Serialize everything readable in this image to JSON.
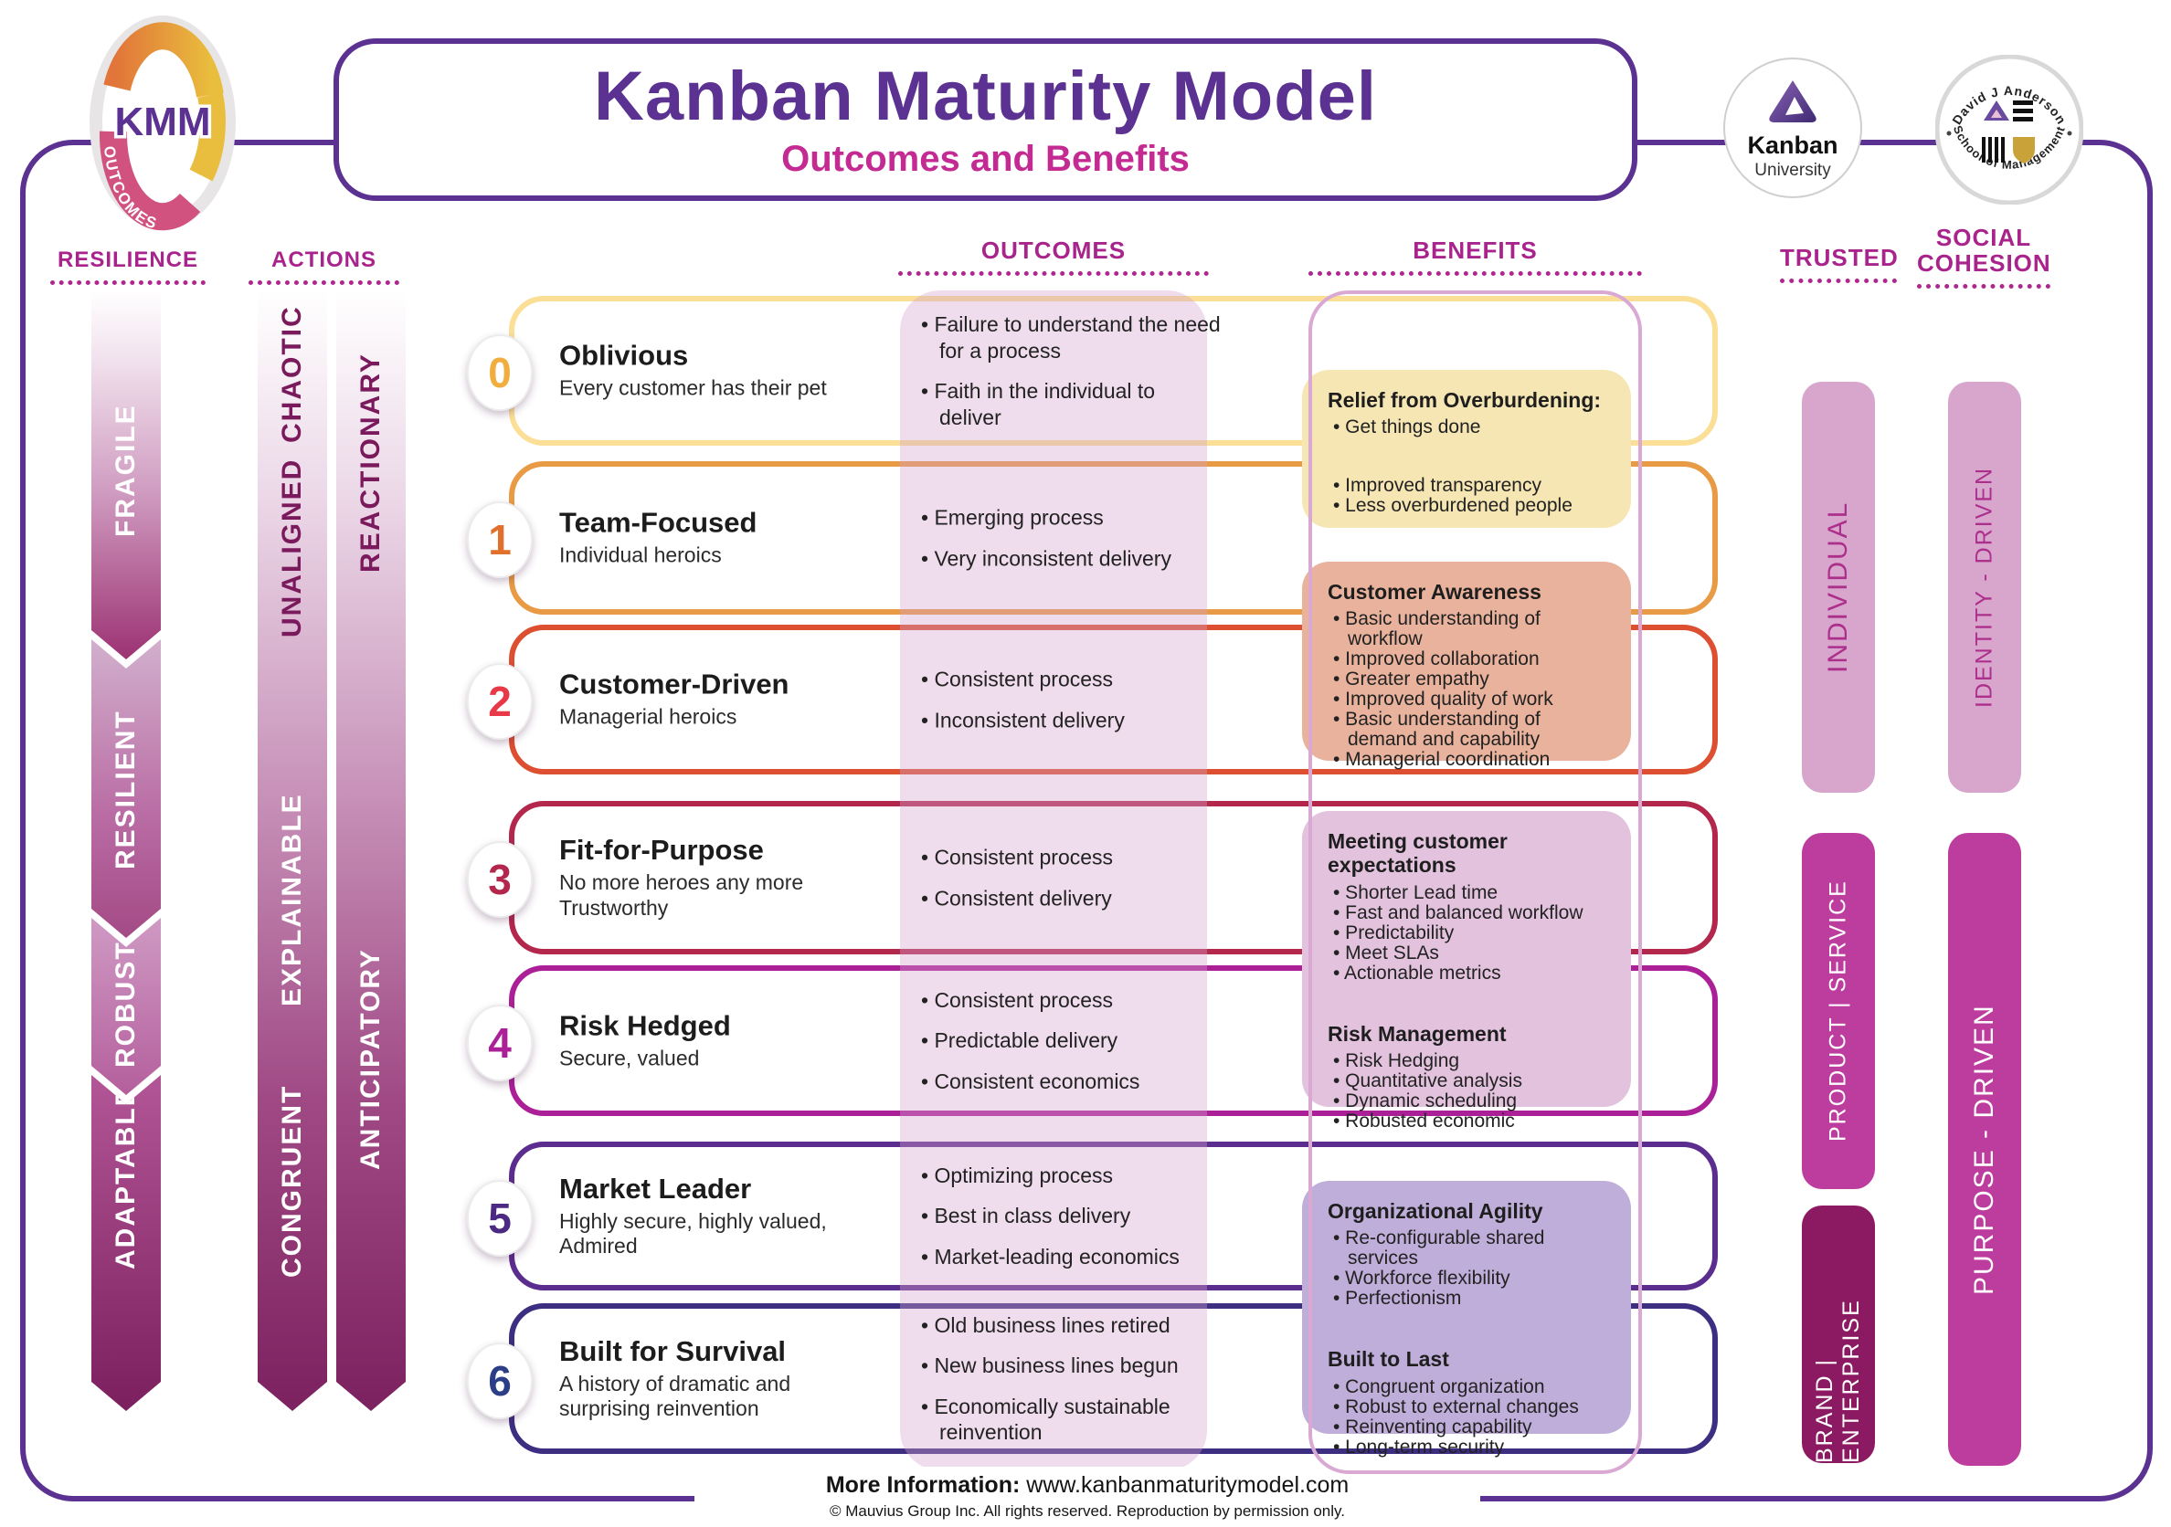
{
  "kmm_logo": {
    "text": "KMM",
    "banner": "OUTCOMES"
  },
  "header": {
    "title": "Kanban Maturity Model",
    "subtitle": "Outcomes and Benefits"
  },
  "partner_logos": {
    "kanban_university": {
      "line1": "Kanban",
      "line2": "University"
    },
    "anderson_school": {
      "arc_top": "David J Anderson",
      "arc_bottom": "School of Management"
    }
  },
  "column_headers": {
    "resilience": "RESILIENCE",
    "actions": "ACTIONS",
    "outcomes": "OUTCOMES",
    "benefits": "BENEFITS",
    "trusted": "TRUSTED",
    "social_line1": "SOCIAL",
    "social_line2": "COHESION"
  },
  "resilience_arrow": {
    "segments": [
      "FRAGILE",
      "RESILIENT",
      "ROBUST",
      "ADAPTABLE"
    ]
  },
  "actions_arrows": [
    {
      "labels": [
        "CHAOTIC",
        "UNALIGNED",
        "EXPLAINABLE",
        "CONGRUENT"
      ]
    },
    {
      "labels": [
        "REACTIONARY",
        "ANTICIPATORY"
      ]
    }
  ],
  "levels": [
    {
      "number": "0",
      "title": "Oblivious",
      "subtitle": "Every customer has their pet",
      "border_color": "#fbdf96",
      "number_color": "#efae3e",
      "outcomes": [
        "Failure to understand the need for a process",
        "Faith in the individual to deliver"
      ]
    },
    {
      "number": "1",
      "title": "Team-Focused",
      "subtitle": "Individual heroics",
      "border_color": "#e89a44",
      "number_color": "#e2702d",
      "outcomes": [
        "Emerging process",
        "Very inconsistent delivery"
      ]
    },
    {
      "number": "2",
      "title": "Customer-Driven",
      "subtitle": "Managerial heroics",
      "border_color": "#dc4f30",
      "number_color": "#e73948",
      "outcomes": [
        "Consistent process",
        "Inconsistent delivery"
      ]
    },
    {
      "number": "3",
      "title": "Fit-for-Purpose",
      "subtitle": "No more heroes any more\nTrustworthy",
      "border_color": "#b3274d",
      "number_color": "#b3274d",
      "outcomes": [
        "Consistent process",
        "Consistent delivery"
      ]
    },
    {
      "number": "4",
      "title": "Risk Hedged",
      "subtitle": "Secure, valued",
      "border_color": "#ab1f97",
      "number_color": "#ab1f97",
      "outcomes": [
        "Consistent process",
        "Predictable delivery",
        "Consistent economics"
      ]
    },
    {
      "number": "5",
      "title": "Market Leader",
      "subtitle": "Highly secure, highly valued,\nAdmired",
      "border_color": "#5b2d8e",
      "number_color": "#4c2a84",
      "outcomes": [
        "Optimizing process",
        "Best in class delivery",
        "Market-leading economics"
      ]
    },
    {
      "number": "6",
      "title": "Built for Survival",
      "subtitle": "A history of dramatic and\nsurprising reinvention",
      "border_color": "#3d2e82",
      "number_color": "#2c3e86",
      "outcomes": [
        "Old business lines retired",
        "New business lines begun",
        "Economically sustainable reinvention"
      ]
    }
  ],
  "benefit_boxes": [
    {
      "bg_color": "#f6e6b4",
      "sections": [
        {
          "title": "Relief from Overburdening:",
          "items": [
            "Get things done"
          ]
        },
        {
          "title": "",
          "items": [
            "Improved transparency",
            "Less overburdened people"
          ]
        }
      ]
    },
    {
      "bg_color": "#e9b29c",
      "sections": [
        {
          "title": "Customer Awareness",
          "items": [
            "Basic understanding of workflow",
            "Improved collaboration",
            "Greater empathy",
            "Improved quality of work",
            "Basic understanding of demand and capability",
            "Managerial coordination"
          ]
        }
      ]
    },
    {
      "bg_color": "#e2c2dd",
      "sections": [
        {
          "title": "Meeting customer expectations",
          "items": [
            "Shorter Lead time",
            "Fast and balanced workflow",
            "Predictability",
            "Meet SLAs",
            "Actionable metrics"
          ]
        },
        {
          "title": "Risk Management",
          "items": [
            "Risk Hedging",
            "Quantitative analysis",
            "Dynamic scheduling",
            "Robusted economic"
          ]
        }
      ]
    },
    {
      "bg_color": "#bfaed9",
      "sections": [
        {
          "title": "Organizational Agility",
          "items": [
            "Re-configurable shared services",
            "Workforce flexibility",
            "Perfectionism"
          ]
        },
        {
          "title": "Built to Last",
          "items": [
            "Congruent organization",
            "Robust to external changes",
            "Reinventing capability",
            "Long-term security"
          ]
        }
      ]
    }
  ],
  "trusted_bars": [
    {
      "label": "INDIVIDUAL",
      "bg_color": "#d8a6cc",
      "text_color": "#ad2f8c"
    },
    {
      "label": "PRODUCT | SERVICE",
      "bg_color": "#bd3d9e",
      "text_color": "#ffffff"
    },
    {
      "label": "BRAND | ENTERPRISE",
      "bg_color": "#8c1a62",
      "text_color": "#ffffff"
    }
  ],
  "social_bars": [
    {
      "label": "IDENTITY - DRIVEN",
      "bg_color": "#d8a6cc",
      "text_color": "#ad2f8c"
    },
    {
      "label": "PURPOSE - DRIVEN",
      "bg_color": "#bd3d9e",
      "text_color": "#ffffff"
    }
  ],
  "footer": {
    "info_label": "More Information:",
    "info_value": "www.kanbanmaturitymodel.com",
    "copyright": "© Mauvius Group Inc. All rights reserved. Reproduction by permission only."
  },
  "theme": {
    "purple": "#5b3191",
    "magenta_header": "#a8238c",
    "subtitle_pink": "#c42b92",
    "outcomes_band": "#d6a4cc",
    "benefits_band_border": "#d9a9d4",
    "arrow_dark": "#7c1f5e",
    "arrow_label_dark": "#7a1a5c"
  }
}
